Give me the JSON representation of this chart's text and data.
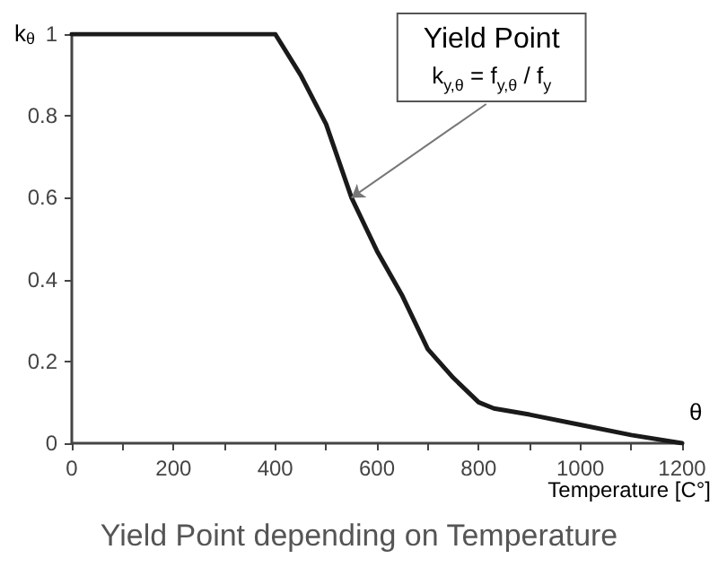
{
  "chart_data": {
    "type": "line",
    "title": "Yield Point depending on Temperature",
    "ylabel": "k$_{θ}$",
    "xlabel": "θ",
    "annotations": [
      "Temperature [C°]",
      {
        "text": "Yield Point\nk$_{y,θ}$ = f$_{y,θ}$ / f$_{y}$",
        "x": 550,
        "y": 0.6
      }
    ],
    "x": [
      0,
      100,
      200,
      300,
      400,
      450,
      500,
      550,
      600,
      650,
      700,
      750,
      800,
      830,
      900,
      1000,
      1100,
      1200
    ],
    "series": [
      {
        "color": "#1a1a1a",
        "values": [
          1,
          1,
          1,
          1,
          1,
          0.9,
          0.78,
          0.6,
          0.47,
          0.36,
          0.23,
          0.16,
          0.1,
          0.085,
          0.07,
          0.045,
          0.02,
          0
        ]
      }
    ],
    "xlim": [
      0,
      1200
    ],
    "xticks": [
      0,
      {
        "value": 100,
        "label": null
      },
      200,
      {
        "value": 300,
        "label": null
      },
      400,
      {
        "value": 500,
        "label": null
      },
      600,
      {
        "value": 700,
        "label": null
      },
      800,
      {
        "value": 900,
        "label": null
      },
      1000,
      {
        "value": 1100,
        "label": null
      },
      1200
    ],
    "ylim": [
      0,
      1
    ],
    "yticks": [
      0,
      0.2,
      0.4,
      0.6,
      0.8,
      1
    ],
    "grid": false,
    "marker": "none",
    "line_style": "solid"
  }
}
